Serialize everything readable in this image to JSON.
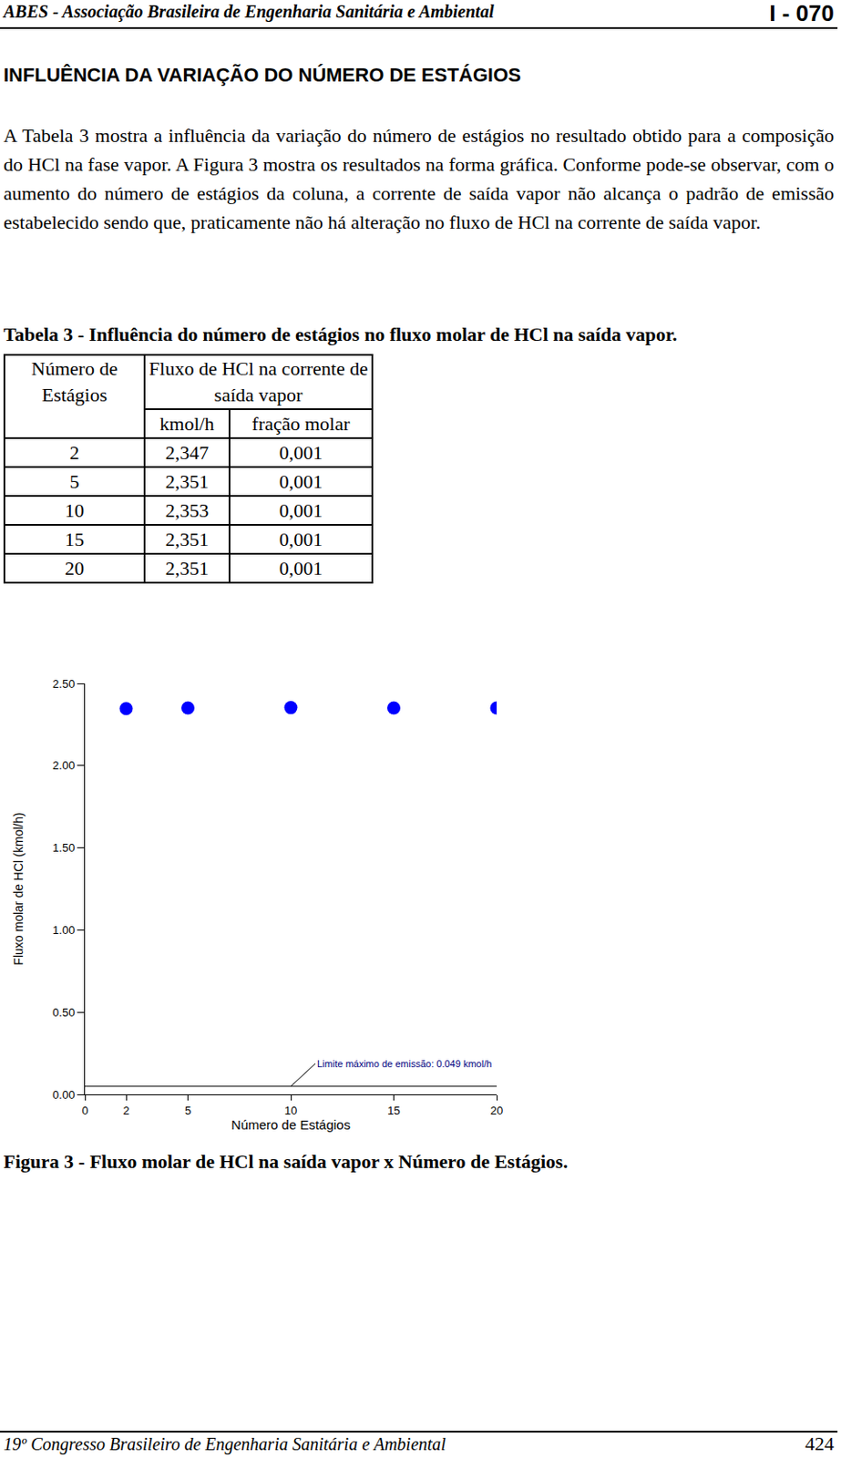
{
  "header": {
    "left": "ABES - Associação Brasileira de Engenharia Sanitária e Ambiental",
    "right": "I - 070"
  },
  "section_title": "INFLUÊNCIA DA VARIAÇÃO DO NÚMERO DE ESTÁGIOS",
  "paragraph": "A Tabela 3 mostra a influência da variação do número de estágios no resultado obtido para a composição do HCl na fase vapor. A Figura 3 mostra os resultados na forma gráfica. Conforme pode-se observar, com o aumento do número de estágios da coluna, a corrente de saída vapor não alcança o padrão de emissão estabelecido sendo que, praticamente não há alteração no fluxo de HCl na corrente de saída vapor.",
  "table": {
    "caption": "Tabela 3 - Influência do número de estágios no fluxo molar de HCl na saída vapor.",
    "first_header": "Número de Estágios",
    "group_header": "Fluxo de HCl na corrente de saída vapor",
    "subheaders": [
      "kmol/h",
      "fração molar"
    ],
    "rows": [
      [
        "2",
        "2,347",
        "0,001"
      ],
      [
        "5",
        "2,351",
        "0,001"
      ],
      [
        "10",
        "2,353",
        "0,001"
      ],
      [
        "15",
        "2,351",
        "0,001"
      ],
      [
        "20",
        "2,351",
        "0,001"
      ]
    ]
  },
  "chart_data": {
    "type": "scatter",
    "x": [
      2,
      5,
      10,
      15,
      20
    ],
    "values": [
      2.347,
      2.351,
      2.353,
      2.351,
      2.351
    ],
    "x_label": "Número de Estágios",
    "y_label": "Fluxo molar de HCl (kmol/h)",
    "xlim": [
      0,
      20
    ],
    "ylim": [
      0,
      2.5
    ],
    "xticks": [
      0,
      2,
      5,
      10,
      15,
      20
    ],
    "yticks": [
      {
        "value": 0,
        "label": "0.00"
      },
      {
        "value": 0.5,
        "label": "0.50"
      },
      {
        "value": 1,
        "label": "1.00"
      },
      {
        "value": 1.5,
        "label": "1.50"
      },
      {
        "value": 2,
        "label": "2.00"
      },
      {
        "value": 2.5,
        "label": "2.50"
      }
    ],
    "color": "#0000ff",
    "marker": "circle",
    "grid": false,
    "limit": {
      "value": 0.049,
      "label": "Limite máximo de emissão: 0.049 kmol/h",
      "x": 10
    }
  },
  "figure_caption": "Figura 3 - Fluxo molar de HCl na saída vapor x Número de Estágios.",
  "footer": {
    "left": "19º Congresso Brasileiro de Engenharia Sanitária e Ambiental",
    "right": "424"
  }
}
